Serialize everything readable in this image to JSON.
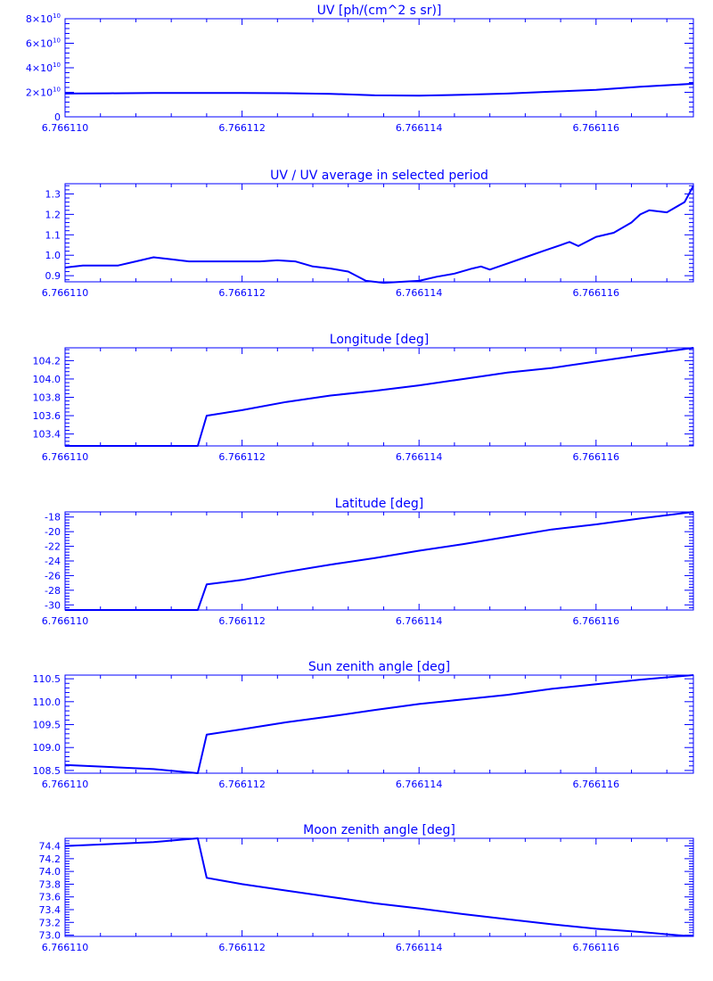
{
  "style": {
    "line_color": "#0000ff",
    "background": "#ffffff"
  },
  "x_axis": {
    "range": [
      6.76611,
      6.7661171
    ],
    "tick_labels": [
      "6.766110",
      "6.766112",
      "6.766114",
      "6.766116"
    ],
    "tick_values": [
      6.76611,
      6.766112,
      6.766114,
      6.766116
    ]
  },
  "chart_data": [
    {
      "type": "line",
      "title": "UV [ph/(cm^2 s sr)]",
      "scale_exp": 10,
      "ylim": [
        0,
        8
      ],
      "yticks": [
        0,
        2,
        4,
        6,
        8
      ],
      "ytick_labels": [
        "0",
        "2×10",
        "4×10",
        "6×10",
        "8×10"
      ],
      "x": [
        6.76611,
        6.7661105,
        6.766111,
        6.7661115,
        6.766112,
        6.7661125,
        6.766113,
        6.7661135,
        6.766114,
        6.7661145,
        6.766115,
        6.7661155,
        6.766116,
        6.7661165,
        6.7661171
      ],
      "y": [
        1.9,
        1.92,
        1.95,
        1.95,
        1.95,
        1.93,
        1.88,
        1.75,
        1.73,
        1.8,
        1.9,
        2.05,
        2.2,
        2.45,
        2.7
      ]
    },
    {
      "type": "line",
      "title": "UV / UV average in selected period",
      "ylim": [
        0.87,
        1.35
      ],
      "yticks": [
        0.9,
        1.0,
        1.1,
        1.2,
        1.3
      ],
      "ytick_labels": [
        "0.9",
        "1.0",
        "1.1",
        "1.2",
        "1.3"
      ],
      "x": [
        6.76611,
        6.7661102,
        6.7661104,
        6.7661106,
        6.7661108,
        6.766111,
        6.7661112,
        6.7661114,
        6.7661116,
        6.7661118,
        6.766112,
        6.7661122,
        6.7661124,
        6.7661126,
        6.7661128,
        6.766113,
        6.7661132,
        6.7661134,
        6.7661136,
        6.7661138,
        6.766114,
        6.7661142,
        6.7661144,
        6.7661146,
        6.7661147,
        6.7661148,
        6.766115,
        6.7661152,
        6.7661154,
        6.7661156,
        6.7661157,
        6.7661158,
        6.766116,
        6.7661162,
        6.7661164,
        6.7661165,
        6.7661166,
        6.7661168,
        6.766117,
        6.7661171
      ],
      "y": [
        0.94,
        0.95,
        0.95,
        0.95,
        0.97,
        0.99,
        0.98,
        0.97,
        0.97,
        0.97,
        0.97,
        0.97,
        0.975,
        0.97,
        0.945,
        0.935,
        0.92,
        0.875,
        0.865,
        0.87,
        0.875,
        0.895,
        0.91,
        0.935,
        0.945,
        0.93,
        0.96,
        0.99,
        1.02,
        1.05,
        1.065,
        1.045,
        1.09,
        1.11,
        1.16,
        1.2,
        1.22,
        1.21,
        1.26,
        1.34
      ]
    },
    {
      "type": "line",
      "title": "Longitude [deg]",
      "ylim": [
        103.27,
        104.34
      ],
      "yticks": [
        103.4,
        103.6,
        103.8,
        104.0,
        104.2
      ],
      "ytick_labels": [
        "103.4",
        "103.6",
        "103.8",
        "104.0",
        "104.2"
      ],
      "x": [
        6.76611,
        6.7661115,
        6.7661116,
        6.766112,
        6.7661125,
        6.766113,
        6.7661135,
        6.766114,
        6.7661145,
        6.766115,
        6.7661155,
        6.766116,
        6.7661165,
        6.7661171
      ],
      "y": [
        103.27,
        103.27,
        103.6,
        103.66,
        103.75,
        103.82,
        103.87,
        103.93,
        104.0,
        104.07,
        104.12,
        104.19,
        104.26,
        104.34
      ]
    },
    {
      "type": "line",
      "title": "Latitude [deg]",
      "ylim": [
        -30.7,
        -17.3
      ],
      "yticks": [
        -30,
        -28,
        -26,
        -24,
        -22,
        -20,
        -18
      ],
      "ytick_labels": [
        "-30",
        "-28",
        "-26",
        "-24",
        "-22",
        "-20",
        "-18"
      ],
      "x": [
        6.76611,
        6.7661115,
        6.7661116,
        6.766112,
        6.7661125,
        6.766113,
        6.7661135,
        6.766114,
        6.7661145,
        6.766115,
        6.7661155,
        6.766116,
        6.7661165,
        6.7661171
      ],
      "y": [
        -30.7,
        -30.7,
        -27.2,
        -26.6,
        -25.5,
        -24.5,
        -23.6,
        -22.6,
        -21.7,
        -20.7,
        -19.7,
        -19.0,
        -18.2,
        -17.3
      ]
    },
    {
      "type": "line",
      "title": "Sun zenith angle [deg]",
      "ylim": [
        108.44,
        110.58
      ],
      "yticks": [
        108.5,
        109.0,
        109.5,
        110.0,
        110.5
      ],
      "ytick_labels": [
        "108.5",
        "109.0",
        "109.5",
        "110.0",
        "110.5"
      ],
      "x": [
        6.76611,
        6.766111,
        6.7661115,
        6.7661116,
        6.766112,
        6.7661125,
        6.766113,
        6.7661135,
        6.766114,
        6.7661145,
        6.766115,
        6.7661155,
        6.766116,
        6.7661165,
        6.7661171
      ],
      "y": [
        108.62,
        108.53,
        108.44,
        109.28,
        109.4,
        109.55,
        109.68,
        109.82,
        109.95,
        110.05,
        110.15,
        110.28,
        110.38,
        110.48,
        110.58
      ]
    },
    {
      "type": "line",
      "title": "Moon zenith angle [deg]",
      "ylim": [
        72.98,
        74.52
      ],
      "yticks": [
        73.0,
        73.2,
        73.4,
        73.6,
        73.8,
        74.0,
        74.2,
        74.4
      ],
      "ytick_labels": [
        "73.0",
        "73.2",
        "73.4",
        "73.6",
        "73.8",
        "74.0",
        "74.2",
        "74.4"
      ],
      "x": [
        6.76611,
        6.766111,
        6.7661115,
        6.7661116,
        6.766112,
        6.7661125,
        6.766113,
        6.7661135,
        6.766114,
        6.7661145,
        6.766115,
        6.7661155,
        6.766116,
        6.7661165,
        6.766117,
        6.7661171
      ],
      "y": [
        74.4,
        74.46,
        74.52,
        73.9,
        73.8,
        73.7,
        73.6,
        73.5,
        73.42,
        73.33,
        73.25,
        73.17,
        73.1,
        73.05,
        72.99,
        72.99
      ]
    }
  ]
}
